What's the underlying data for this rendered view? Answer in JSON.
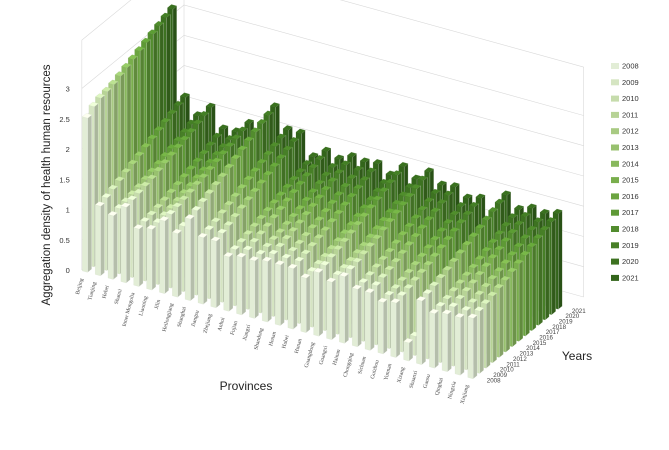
{
  "chart_data": {
    "type": "bar",
    "subtype": "3d-bar",
    "title": "",
    "zlabel": "Aggregation density of health human resources",
    "xlabel": "Provinces",
    "ylabel": "Years",
    "zlim": [
      0,
      3
    ],
    "z_ticks": [
      "0",
      "0.5",
      "1",
      "1.5",
      "2",
      "2.5",
      "3"
    ],
    "grid": true,
    "legend_position": "right",
    "categories": [
      "Beijing",
      "Tianjing",
      "Hebei",
      "Shanxi",
      "Inner Mongolia",
      "Liaoning",
      "Jilin",
      "Heilongjiang",
      "Shanghai",
      "Jiangsu",
      "Zhejiang",
      "Anhui",
      "Fujian",
      "Jiangxi",
      "Shandong",
      "Henan",
      "Hubei",
      "Hunan",
      "Guangdong",
      "Guangxi",
      "Hainan",
      "Chongqing",
      "Sichuan",
      "Guizhou",
      "Yunnan",
      "Xizang",
      "Shaanxi",
      "Gansu",
      "Qinghai",
      "Ningxia",
      "Xinjiang"
    ],
    "series": [
      {
        "name": "2008",
        "color": "#e2edd6",
        "values": [
          2.55,
          1.15,
          1.05,
          1.25,
          0.95,
          1.0,
          1.2,
          1.05,
          1.35,
          1.1,
          1.1,
          0.9,
          0.95,
          0.95,
          1.0,
          1.0,
          1.0,
          0.9,
          1.05,
          0.95,
          1.1,
          0.95,
          0.95,
          0.85,
          0.9,
          0.3,
          1.05,
          0.9,
          0.95,
          0.95,
          1.0
        ]
      },
      {
        "name": "2009",
        "color": "#d5e5c2",
        "values": [
          2.65,
          1.2,
          1.08,
          1.28,
          0.98,
          1.02,
          1.22,
          1.08,
          1.4,
          1.14,
          1.14,
          0.93,
          0.98,
          0.97,
          1.03,
          1.02,
          1.03,
          0.92,
          1.08,
          0.98,
          1.13,
          0.97,
          0.98,
          0.88,
          0.93,
          0.32,
          1.08,
          0.93,
          0.98,
          0.98,
          1.03
        ]
      },
      {
        "name": "2010",
        "color": "#c6dcac",
        "values": [
          2.7,
          1.25,
          1.1,
          1.3,
          1.0,
          1.05,
          1.25,
          1.1,
          1.45,
          1.18,
          1.18,
          0.96,
          1.02,
          1.0,
          1.06,
          1.05,
          1.06,
          0.95,
          1.12,
          1.0,
          1.16,
          1.0,
          1.02,
          0.9,
          0.96,
          0.35,
          1.12,
          0.96,
          1.02,
          1.02,
          1.06
        ]
      },
      {
        "name": "2011",
        "color": "#b7d396",
        "values": [
          2.72,
          1.3,
          1.13,
          1.33,
          1.03,
          1.08,
          1.28,
          1.13,
          1.5,
          1.23,
          1.23,
          1.0,
          1.06,
          1.03,
          1.1,
          1.08,
          1.1,
          0.98,
          1.16,
          1.03,
          1.2,
          1.04,
          1.06,
          0.94,
          1.0,
          0.38,
          1.16,
          1.0,
          1.06,
          1.06,
          1.1
        ]
      },
      {
        "name": "2012",
        "color": "#a8ca82",
        "values": [
          2.75,
          1.35,
          1.16,
          1.36,
          1.06,
          1.11,
          1.31,
          1.16,
          1.55,
          1.28,
          1.28,
          1.04,
          1.1,
          1.06,
          1.14,
          1.12,
          1.14,
          1.02,
          1.2,
          1.07,
          1.24,
          1.08,
          1.1,
          0.98,
          1.04,
          0.42,
          1.2,
          1.04,
          1.1,
          1.1,
          1.14
        ]
      },
      {
        "name": "2013",
        "color": "#98c16f",
        "values": [
          2.8,
          1.4,
          1.2,
          1.4,
          1.1,
          1.15,
          1.35,
          1.2,
          1.6,
          1.33,
          1.33,
          1.08,
          1.15,
          1.1,
          1.18,
          1.16,
          1.18,
          1.06,
          1.25,
          1.1,
          1.28,
          1.12,
          1.15,
          1.02,
          1.08,
          0.45,
          1.25,
          1.08,
          1.15,
          1.14,
          1.18
        ]
      },
      {
        "name": "2014",
        "color": "#88b85d",
        "values": [
          2.85,
          1.45,
          1.24,
          1.44,
          1.14,
          1.18,
          1.38,
          1.24,
          1.66,
          1.38,
          1.38,
          1.12,
          1.2,
          1.14,
          1.23,
          1.2,
          1.23,
          1.1,
          1.3,
          1.15,
          1.33,
          1.17,
          1.2,
          1.07,
          1.13,
          0.5,
          1.3,
          1.12,
          1.2,
          1.18,
          1.23
        ]
      },
      {
        "name": "2015",
        "color": "#79ae4c",
        "values": [
          2.9,
          1.5,
          1.28,
          1.48,
          1.18,
          1.22,
          1.42,
          1.28,
          1.72,
          1.43,
          1.43,
          1.16,
          1.25,
          1.18,
          1.28,
          1.25,
          1.28,
          1.15,
          1.35,
          1.2,
          1.38,
          1.22,
          1.25,
          1.12,
          1.18,
          0.55,
          1.35,
          1.17,
          1.25,
          1.22,
          1.28
        ]
      },
      {
        "name": "2016",
        "color": "#6ba440",
        "values": [
          2.95,
          1.55,
          1.32,
          1.52,
          1.22,
          1.26,
          1.46,
          1.32,
          1.78,
          1.48,
          1.48,
          1.2,
          1.3,
          1.23,
          1.33,
          1.3,
          1.33,
          1.2,
          1.4,
          1.25,
          1.43,
          1.27,
          1.3,
          1.17,
          1.23,
          0.6,
          1.4,
          1.22,
          1.3,
          1.27,
          1.33
        ]
      },
      {
        "name": "2017",
        "color": "#5e9936",
        "values": [
          3.0,
          1.6,
          1.36,
          1.56,
          1.26,
          1.3,
          1.5,
          1.36,
          1.84,
          1.53,
          1.53,
          1.24,
          1.35,
          1.28,
          1.38,
          1.35,
          1.38,
          1.25,
          1.45,
          1.3,
          1.48,
          1.32,
          1.35,
          1.22,
          1.28,
          0.65,
          1.45,
          1.27,
          1.35,
          1.32,
          1.38
        ]
      },
      {
        "name": "2018",
        "color": "#528c2e",
        "values": [
          3.05,
          1.65,
          1.4,
          1.6,
          1.3,
          1.34,
          1.54,
          1.4,
          1.9,
          1.58,
          1.58,
          1.28,
          1.4,
          1.33,
          1.43,
          1.4,
          1.43,
          1.3,
          1.5,
          1.35,
          1.53,
          1.37,
          1.4,
          1.27,
          1.33,
          0.7,
          1.5,
          1.32,
          1.4,
          1.37,
          1.43
        ]
      },
      {
        "name": "2019",
        "color": "#477f27",
        "values": [
          3.1,
          1.7,
          1.45,
          1.65,
          1.35,
          1.38,
          1.58,
          1.45,
          1.95,
          1.63,
          1.63,
          1.32,
          1.45,
          1.38,
          1.48,
          1.45,
          1.48,
          1.35,
          1.55,
          1.4,
          1.58,
          1.42,
          1.45,
          1.32,
          1.38,
          0.75,
          1.55,
          1.37,
          1.45,
          1.42,
          1.48
        ]
      },
      {
        "name": "2020",
        "color": "#3d7221",
        "values": [
          3.15,
          1.75,
          1.5,
          1.7,
          1.4,
          1.42,
          1.62,
          1.5,
          2.0,
          1.68,
          1.68,
          1.36,
          1.5,
          1.43,
          1.53,
          1.5,
          1.53,
          1.4,
          1.6,
          1.45,
          1.63,
          1.47,
          1.5,
          1.37,
          1.43,
          0.8,
          1.6,
          1.42,
          1.5,
          1.47,
          1.53
        ]
      },
      {
        "name": "2021",
        "color": "#33651b",
        "values": [
          3.2,
          1.8,
          1.55,
          1.75,
          1.45,
          1.46,
          1.66,
          1.55,
          2.05,
          1.73,
          1.73,
          1.4,
          1.55,
          1.48,
          1.58,
          1.55,
          1.58,
          1.45,
          1.65,
          1.5,
          1.68,
          1.52,
          1.55,
          1.42,
          1.48,
          0.85,
          1.65,
          1.47,
          1.55,
          1.52,
          1.58
        ]
      }
    ]
  }
}
